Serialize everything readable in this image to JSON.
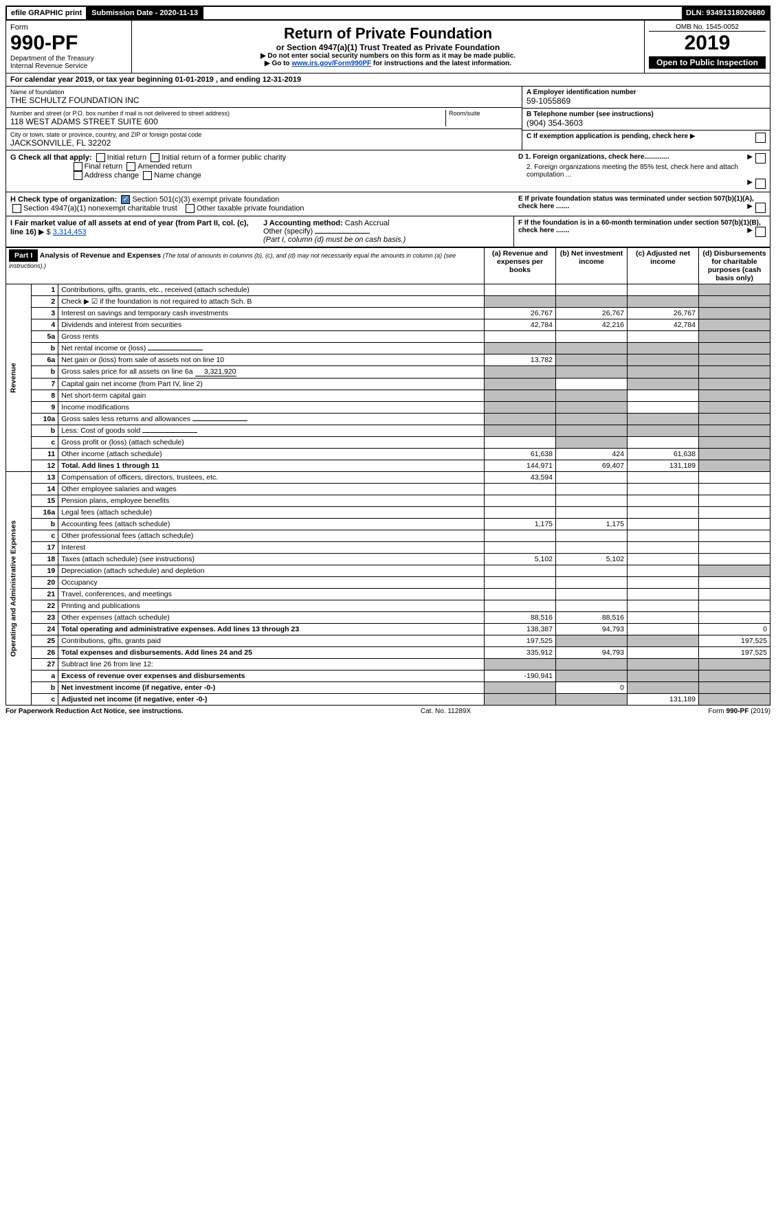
{
  "topbar": {
    "efile": "efile GRAPHIC print",
    "sub_label": "Submission Date - 2020-11-13",
    "dln": "DLN: 93491318026680"
  },
  "header": {
    "form_word": "Form",
    "form_no": "990-PF",
    "dept": "Department of the Treasury",
    "irs": "Internal Revenue Service",
    "title": "Return of Private Foundation",
    "subtitle": "or Section 4947(a)(1) Trust Treated as Private Foundation",
    "note1": "▶ Do not enter social security numbers on this form as it may be made public.",
    "note2_pre": "▶ Go to ",
    "note2_link": "www.irs.gov/Form990PF",
    "note2_post": " for instructions and the latest information.",
    "omb": "OMB No. 1545-0052",
    "year": "2019",
    "inspect": "Open to Public Inspection"
  },
  "calyear": {
    "text_pre": "For calendar year 2019, or tax year beginning ",
    "begin": "01-01-2019",
    "mid": " , and ending ",
    "end": "12-31-2019"
  },
  "info": {
    "name_label": "Name of foundation",
    "name": "THE SCHULTZ FOUNDATION INC",
    "addr_label": "Number and street (or P.O. box number if mail is not delivered to street address)",
    "addr": "118 WEST ADAMS STREET SUITE 600",
    "room_label": "Room/suite",
    "city_label": "City or town, state or province, country, and ZIP or foreign postal code",
    "city": "JACKSONVILLE, FL  32202",
    "a_label": "A Employer identification number",
    "a_val": "59-1055869",
    "b_label": "B Telephone number (see instructions)",
    "b_val": "(904) 354-3603",
    "c_label": "C If exemption application is pending, check here",
    "d1": "D 1. Foreign organizations, check here.............",
    "d2": "2. Foreign organizations meeting the 85% test, check here and attach computation ...",
    "e": "E  If private foundation status was terminated under section 507(b)(1)(A), check here .......",
    "f": "F  If the foundation is in a 60-month termination under section 507(b)(1)(B), check here .......",
    "g_label": "G Check all that apply:",
    "g_opts": [
      "Initial return",
      "Initial return of a former public charity",
      "Final return",
      "Amended return",
      "Address change",
      "Name change"
    ],
    "h_label": "H Check type of organization:",
    "h_opt1": "Section 501(c)(3) exempt private foundation",
    "h_opt2": "Section 4947(a)(1) nonexempt charitable trust",
    "h_opt3": "Other taxable private foundation",
    "i_label": "I Fair market value of all assets at end of year (from Part II, col. (c), line 16)",
    "i_val": "3,314,453",
    "j_label": "J Accounting method:",
    "j_cash": "Cash",
    "j_accrual": "Accrual",
    "j_other": "Other (specify)",
    "j_note": "(Part I, column (d) must be on cash basis.)"
  },
  "part1": {
    "label": "Part I",
    "title": "Analysis of Revenue and Expenses",
    "title_note": "(The total of amounts in columns (b), (c), and (d) may not necessarily equal the amounts in column (a) (see instructions).)",
    "col_a": "(a)   Revenue and expenses per books",
    "col_b": "(b)  Net investment income",
    "col_c": "(c)  Adjusted net income",
    "col_d": "(d)  Disbursements for charitable purposes (cash basis only)",
    "rev_label": "Revenue",
    "exp_label": "Operating and Administrative Expenses"
  },
  "rows": [
    {
      "n": "1",
      "desc": "Contributions, gifts, grants, etc., received (attach schedule)",
      "a": "",
      "b": "",
      "c": "",
      "d": "grey"
    },
    {
      "n": "2",
      "desc": "Check ▶ ☑ if the foundation is not required to attach Sch. B",
      "a": "grey",
      "b": "grey",
      "c": "grey",
      "d": "grey",
      "bold_not": true
    },
    {
      "n": "3",
      "desc": "Interest on savings and temporary cash investments",
      "a": "26,767",
      "b": "26,767",
      "c": "26,767",
      "d": "grey"
    },
    {
      "n": "4",
      "desc": "Dividends and interest from securities",
      "a": "42,784",
      "b": "42,216",
      "c": "42,784",
      "d": "grey"
    },
    {
      "n": "5a",
      "desc": "Gross rents",
      "a": "",
      "b": "",
      "c": "",
      "d": "grey"
    },
    {
      "n": "b",
      "desc": "Net rental income or (loss)",
      "a": "grey",
      "b": "grey",
      "c": "grey",
      "d": "grey",
      "inline": true
    },
    {
      "n": "6a",
      "desc": "Net gain or (loss) from sale of assets not on line 10",
      "a": "13,782",
      "b": "grey",
      "c": "grey",
      "d": "grey"
    },
    {
      "n": "b",
      "desc": "Gross sales price for all assets on line 6a",
      "a": "grey",
      "b": "grey",
      "c": "grey",
      "d": "grey",
      "inline_val": "3,321,920"
    },
    {
      "n": "7",
      "desc": "Capital gain net income (from Part IV, line 2)",
      "a": "grey",
      "b": "",
      "c": "grey",
      "d": "grey"
    },
    {
      "n": "8",
      "desc": "Net short-term capital gain",
      "a": "grey",
      "b": "grey",
      "c": "",
      "d": "grey"
    },
    {
      "n": "9",
      "desc": "Income modifications",
      "a": "grey",
      "b": "grey",
      "c": "",
      "d": "grey"
    },
    {
      "n": "10a",
      "desc": "Gross sales less returns and allowances",
      "a": "grey",
      "b": "grey",
      "c": "grey",
      "d": "grey",
      "inline": true
    },
    {
      "n": "b",
      "desc": "Less: Cost of goods sold",
      "a": "grey",
      "b": "grey",
      "c": "grey",
      "d": "grey",
      "inline": true
    },
    {
      "n": "c",
      "desc": "Gross profit or (loss) (attach schedule)",
      "a": "",
      "b": "grey",
      "c": "",
      "d": "grey"
    },
    {
      "n": "11",
      "desc": "Other income (attach schedule)",
      "a": "61,638",
      "b": "424",
      "c": "61,638",
      "d": "grey"
    },
    {
      "n": "12",
      "desc": "Total. Add lines 1 through 11",
      "a": "144,971",
      "b": "69,407",
      "c": "131,189",
      "d": "grey",
      "bold": true
    }
  ],
  "exp_rows": [
    {
      "n": "13",
      "desc": "Compensation of officers, directors, trustees, etc.",
      "a": "43,594",
      "b": "",
      "c": "",
      "d": ""
    },
    {
      "n": "14",
      "desc": "Other employee salaries and wages",
      "a": "",
      "b": "",
      "c": "",
      "d": ""
    },
    {
      "n": "15",
      "desc": "Pension plans, employee benefits",
      "a": "",
      "b": "",
      "c": "",
      "d": ""
    },
    {
      "n": "16a",
      "desc": "Legal fees (attach schedule)",
      "a": "",
      "b": "",
      "c": "",
      "d": ""
    },
    {
      "n": "b",
      "desc": "Accounting fees (attach schedule)",
      "a": "1,175",
      "b": "1,175",
      "c": "",
      "d": ""
    },
    {
      "n": "c",
      "desc": "Other professional fees (attach schedule)",
      "a": "",
      "b": "",
      "c": "",
      "d": ""
    },
    {
      "n": "17",
      "desc": "Interest",
      "a": "",
      "b": "",
      "c": "",
      "d": ""
    },
    {
      "n": "18",
      "desc": "Taxes (attach schedule) (see instructions)",
      "a": "5,102",
      "b": "5,102",
      "c": "",
      "d": ""
    },
    {
      "n": "19",
      "desc": "Depreciation (attach schedule) and depletion",
      "a": "",
      "b": "",
      "c": "",
      "d": "grey"
    },
    {
      "n": "20",
      "desc": "Occupancy",
      "a": "",
      "b": "",
      "c": "",
      "d": ""
    },
    {
      "n": "21",
      "desc": "Travel, conferences, and meetings",
      "a": "",
      "b": "",
      "c": "",
      "d": ""
    },
    {
      "n": "22",
      "desc": "Printing and publications",
      "a": "",
      "b": "",
      "c": "",
      "d": ""
    },
    {
      "n": "23",
      "desc": "Other expenses (attach schedule)",
      "a": "88,516",
      "b": "88,516",
      "c": "",
      "d": ""
    },
    {
      "n": "24",
      "desc": "Total operating and administrative expenses. Add lines 13 through 23",
      "a": "138,387",
      "b": "94,793",
      "c": "",
      "d": "0",
      "bold": true
    },
    {
      "n": "25",
      "desc": "Contributions, gifts, grants paid",
      "a": "197,525",
      "b": "grey",
      "c": "grey",
      "d": "197,525"
    },
    {
      "n": "26",
      "desc": "Total expenses and disbursements. Add lines 24 and 25",
      "a": "335,912",
      "b": "94,793",
      "c": "",
      "d": "197,525",
      "bold": true
    },
    {
      "n": "27",
      "desc": "Subtract line 26 from line 12:",
      "a": "grey",
      "b": "grey",
      "c": "grey",
      "d": "grey"
    },
    {
      "n": "a",
      "desc": "Excess of revenue over expenses and disbursements",
      "a": "-190,941",
      "b": "grey",
      "c": "grey",
      "d": "grey",
      "bold": true
    },
    {
      "n": "b",
      "desc": "Net investment income (if negative, enter -0-)",
      "a": "grey",
      "b": "0",
      "c": "grey",
      "d": "grey",
      "bold": true
    },
    {
      "n": "c",
      "desc": "Adjusted net income (if negative, enter -0-)",
      "a": "grey",
      "b": "grey",
      "c": "131,189",
      "d": "grey",
      "bold": true
    }
  ],
  "footer": {
    "left": "For Paperwork Reduction Act Notice, see instructions.",
    "mid": "Cat. No. 11289X",
    "right": "Form 990-PF (2019)"
  }
}
